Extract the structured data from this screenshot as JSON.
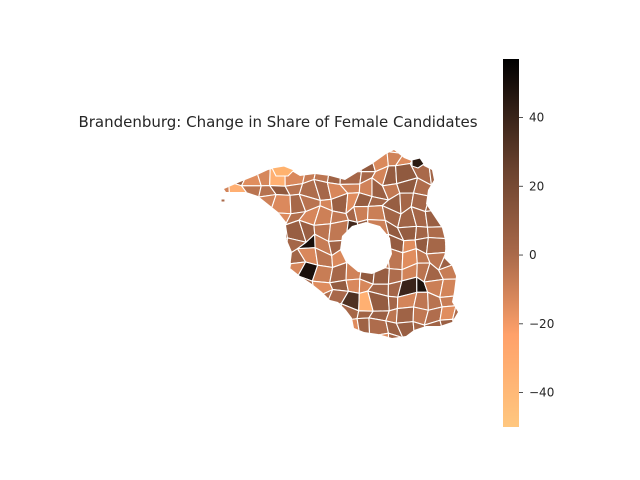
{
  "title": "Brandenburg: Change in Share of Female Candidates",
  "colorbar": {
    "colormap": "copper_r",
    "min": -50,
    "max": 57,
    "ticks": [
      40,
      20,
      0,
      -20,
      -40
    ],
    "tick_labels": [
      "40",
      "20",
      "0",
      "−20",
      "−40"
    ],
    "color_low": "#ffc77f",
    "color_high": "#000000"
  },
  "chart_data": {
    "type": "choropleth",
    "title": "Brandenburg: Change in Share of Female Candidates",
    "region": "Brandenburg",
    "value_range": [
      -50,
      57
    ],
    "notable_values": {
      "darkest_regions_approx": 50,
      "lightest_region_approx": -45,
      "typical_range": [
        -15,
        10
      ]
    }
  },
  "colors": {
    "background": "#ffffff",
    "text": "#262626",
    "region_border": "#ffffff"
  }
}
